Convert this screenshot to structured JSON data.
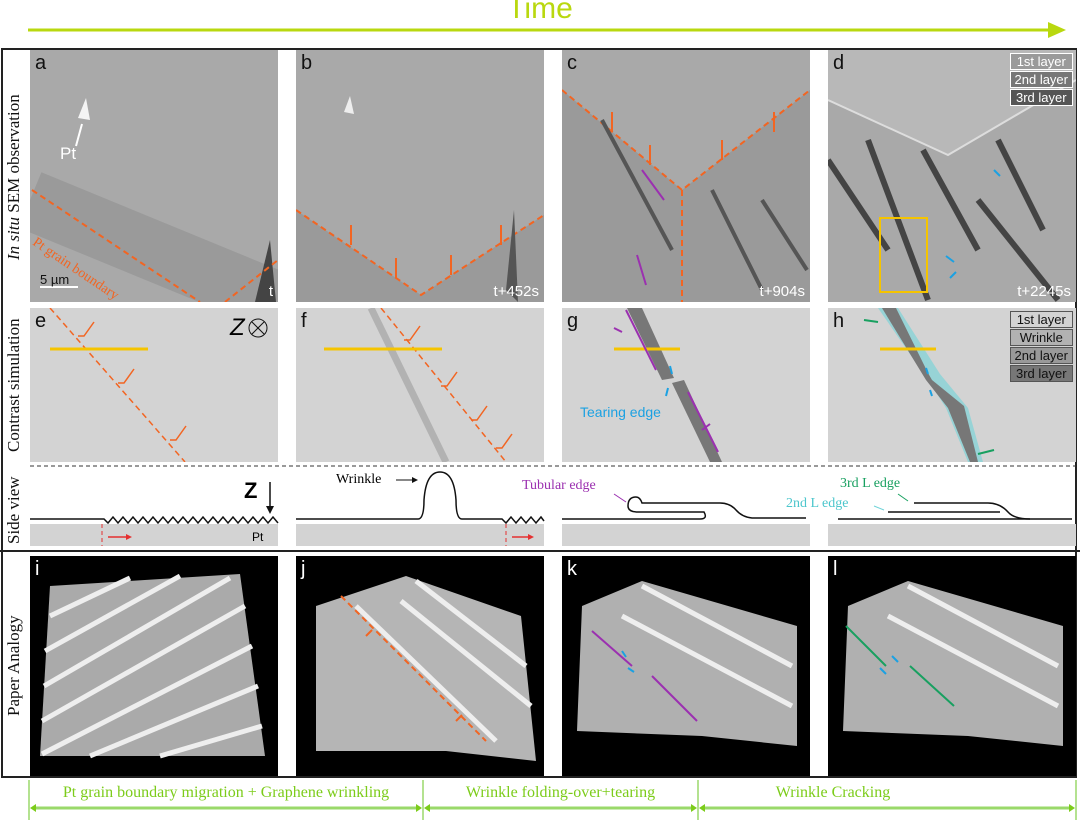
{
  "header": {
    "title": "Time"
  },
  "rows": {
    "sem": "In situ SEM observation",
    "sem_italic": "In situ",
    "sem_rest": " SEM observation",
    "simulation": "Contrast simulation",
    "side": "Side view",
    "paper": "Paper Analogy"
  },
  "sem_panels": [
    {
      "letter": "a",
      "time": "t",
      "pt_label": "Pt",
      "gb_label": "Pt grain boundary",
      "scale": "5 µm"
    },
    {
      "letter": "b",
      "time": "t+452s"
    },
    {
      "letter": "c",
      "time": "t+904s"
    },
    {
      "letter": "d",
      "time": "t+2245s",
      "legend": [
        "1st layer",
        "2nd layer",
        "3rd layer"
      ]
    }
  ],
  "sim_panels": [
    {
      "letter": "e",
      "axis": "Z"
    },
    {
      "letter": "f"
    },
    {
      "letter": "g",
      "label": "Tearing edge"
    },
    {
      "letter": "h",
      "legend": [
        "1st layer",
        "Wrinkle",
        "2nd layer",
        "3rd layer"
      ]
    }
  ],
  "side_view": {
    "z": "Z",
    "pt": "Pt",
    "wrinkle": "Wrinkle",
    "tubular": "Tubular edge",
    "third": "3rd L edge",
    "second": "2nd L edge"
  },
  "paper_panels": [
    "i",
    "j",
    "k",
    "l"
  ],
  "stages": [
    "Pt grain boundary migration + Graphene wrinkling",
    "Wrinkle folding-over+tearing",
    "Wrinkle Cracking"
  ],
  "colors": {
    "time_arrow": "#b9d80f",
    "boundary": "#f26522",
    "arrow_purple": "#9b30b0",
    "arrow_blue": "#1ba1e2",
    "edge_green": "#18a060",
    "edge_cyan": "#6fd3d8",
    "stage": "#7ccc1a",
    "highlight": "#f5c400"
  }
}
